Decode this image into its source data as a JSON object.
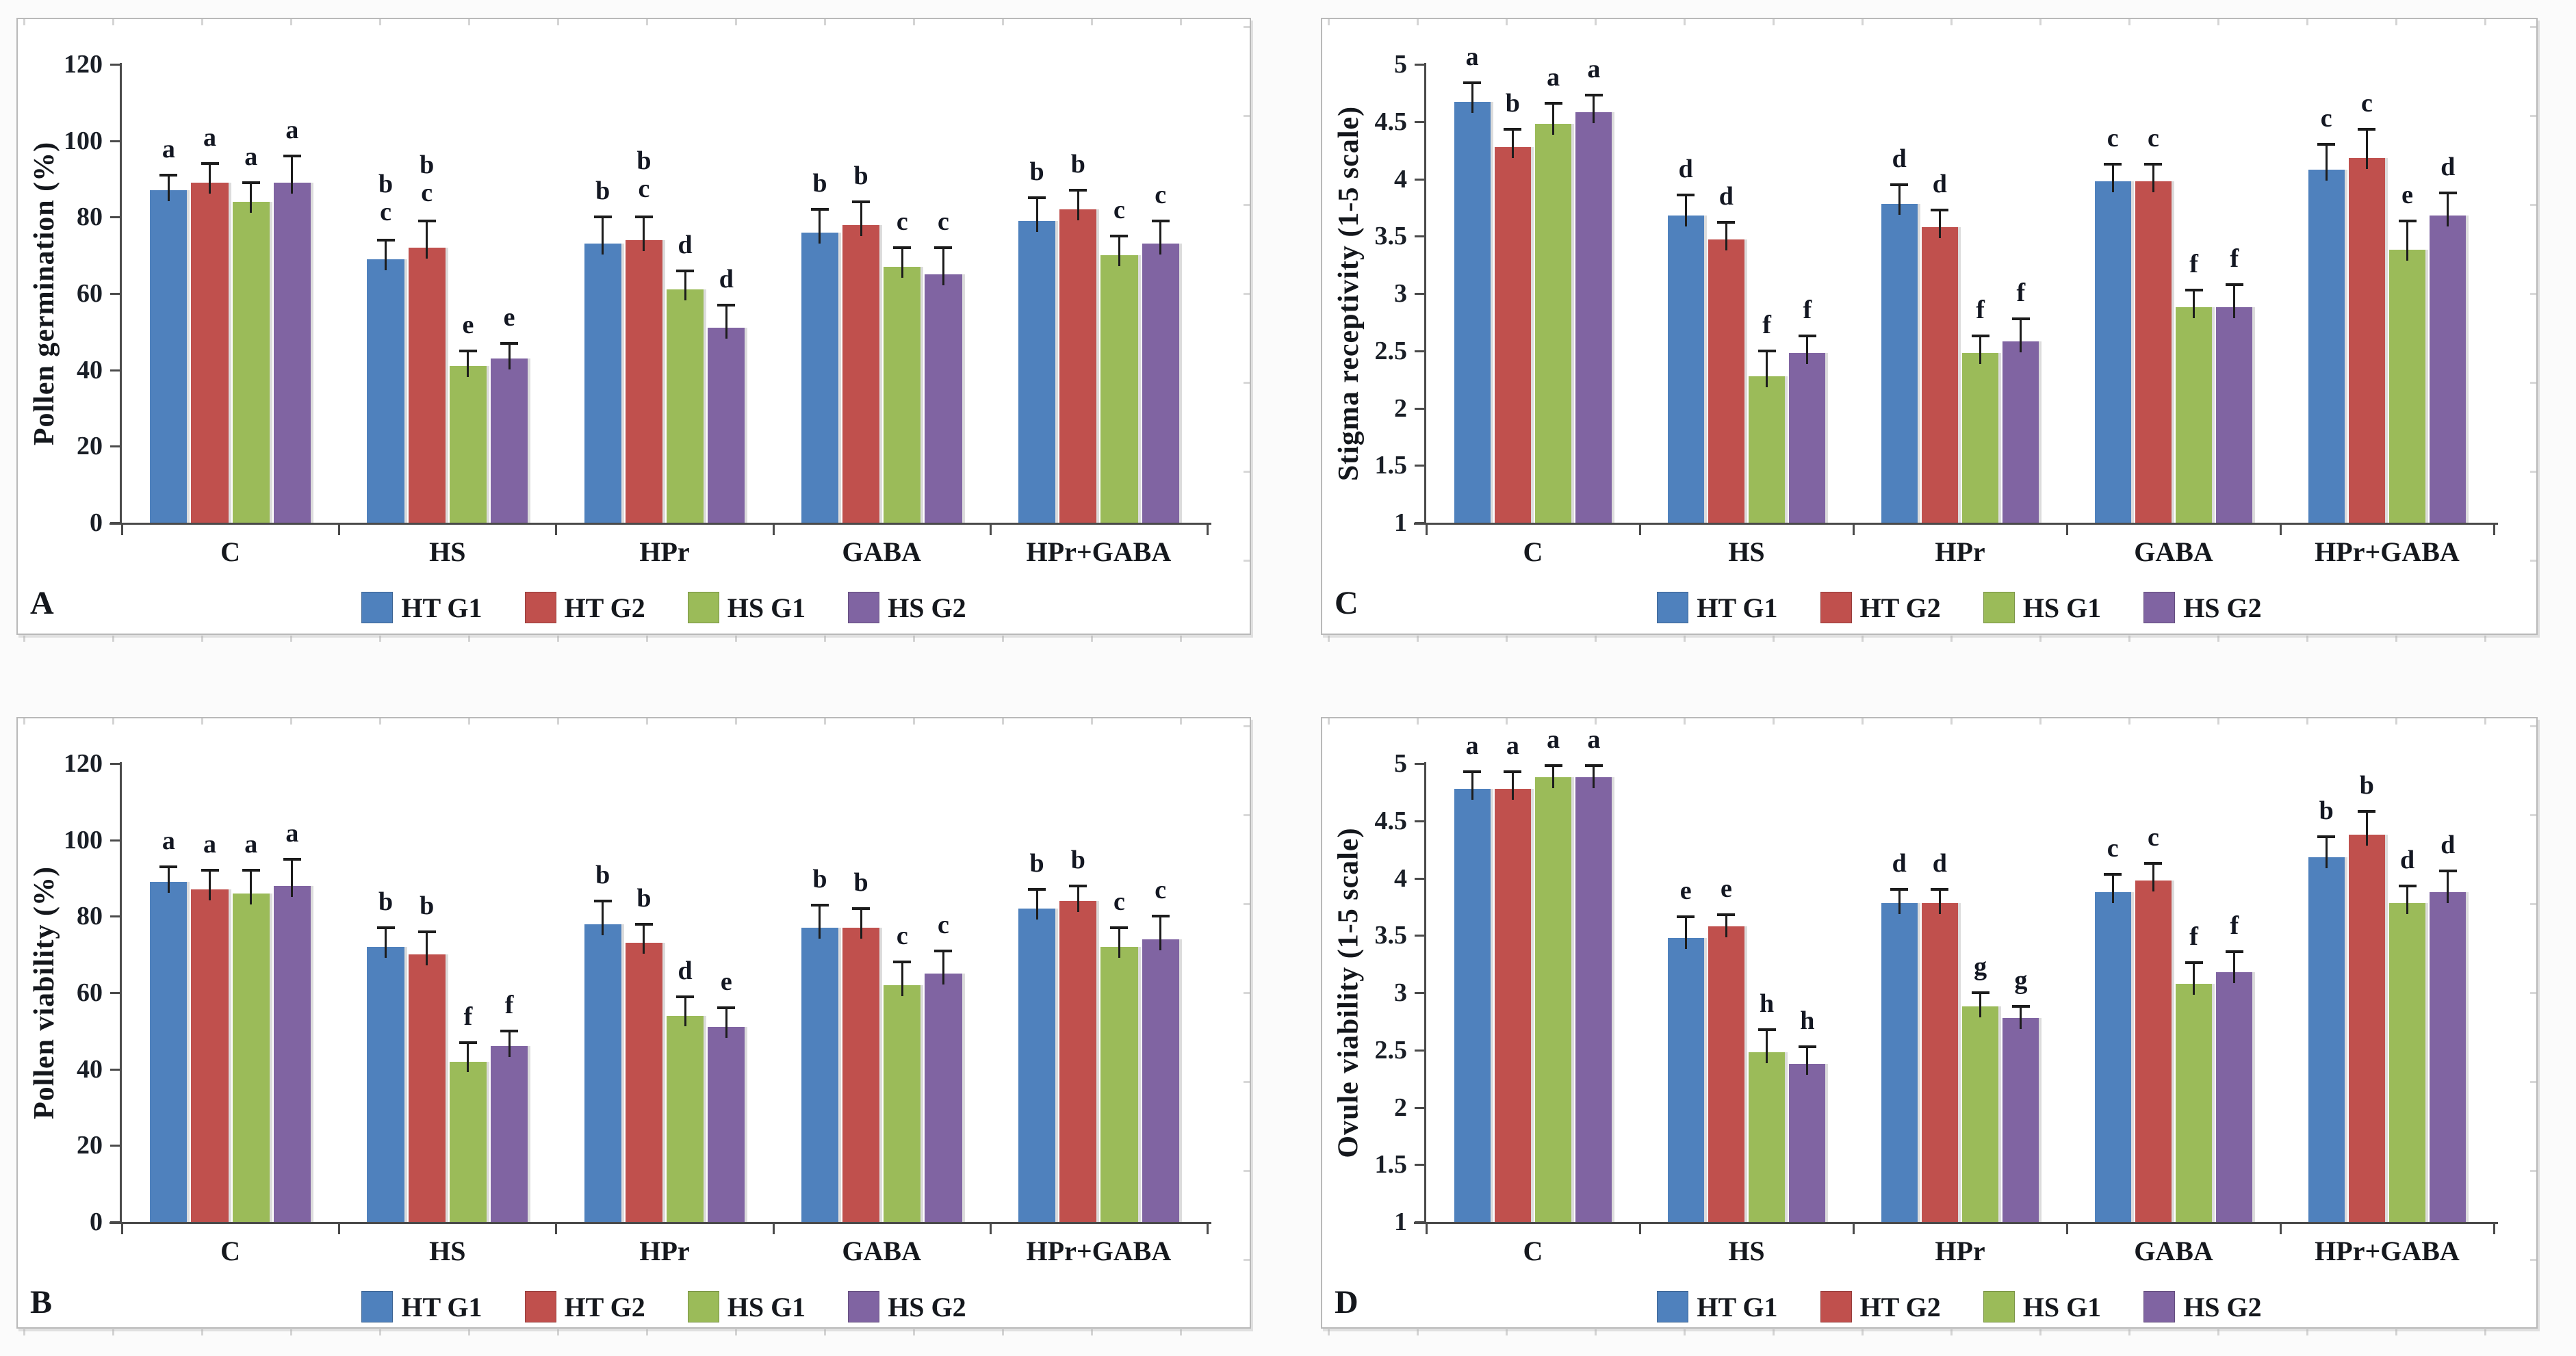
{
  "legend": {
    "items": [
      {
        "label": "HT G1",
        "color": "#4F81BD"
      },
      {
        "label": "HT G2",
        "color": "#C0504D"
      },
      {
        "label": "HS G1",
        "color": "#9BBB59"
      },
      {
        "label": "HS G2",
        "color": "#8064A2"
      }
    ]
  },
  "chart_data": [
    {
      "type": "bar",
      "panel_label": "A",
      "ylabel": "Pollen germination (%)",
      "categories": [
        "C",
        "HS",
        "HPr",
        "GABA",
        "HPr+GABA"
      ],
      "ylim": [
        0,
        120
      ],
      "yticks_values": [
        0,
        20,
        40,
        60,
        80,
        100,
        120
      ],
      "yticks_labels": [
        "0",
        "20",
        "40",
        "60",
        "80",
        "100",
        "120"
      ],
      "grid": false,
      "legend_position": "bottom",
      "series": [
        {
          "name": "HT G1",
          "color": "#4F81BD",
          "values": [
            87,
            69,
            73,
            76,
            79
          ],
          "errors": [
            4,
            5,
            7,
            6,
            6
          ],
          "sig_letters": [
            "a",
            "b\nc",
            "b",
            "b",
            "b"
          ]
        },
        {
          "name": "HT G2",
          "color": "#C0504D",
          "values": [
            89,
            72,
            74,
            78,
            82
          ],
          "errors": [
            5,
            7,
            6,
            6,
            5
          ],
          "sig_letters": [
            "a",
            "b\nc",
            "b\nc",
            "b",
            "b"
          ]
        },
        {
          "name": "HS G1",
          "color": "#9BBB59",
          "values": [
            84,
            41,
            61,
            67,
            70
          ],
          "errors": [
            5,
            4,
            5,
            5,
            5
          ],
          "sig_letters": [
            "a",
            "e",
            "d",
            "c",
            "c"
          ]
        },
        {
          "name": "HS G2",
          "color": "#8064A2",
          "values": [
            89,
            43,
            51,
            65,
            73
          ],
          "errors": [
            7,
            4,
            6,
            7,
            6
          ],
          "sig_letters": [
            "a",
            "e",
            "d",
            "c",
            "c"
          ]
        }
      ]
    },
    {
      "type": "bar",
      "panel_label": "C",
      "ylabel": "Stigma receptivity (1-5 scale)",
      "categories": [
        "C",
        "HS",
        "HPr",
        "GABA",
        "HPr+GABA"
      ],
      "ylim": [
        1,
        5
      ],
      "yticks_values": [
        1,
        1.5,
        2,
        2.5,
        3,
        3.5,
        4,
        4.5,
        5
      ],
      "yticks_labels": [
        "1",
        "1.5",
        "2",
        "2.5",
        "3",
        "3.5",
        "4",
        "4.5",
        "5"
      ],
      "grid": false,
      "legend_position": "bottom",
      "series": [
        {
          "name": "HT G1",
          "color": "#4F81BD",
          "values": [
            4.67,
            3.68,
            3.78,
            3.98,
            4.08
          ],
          "errors": [
            0.17,
            0.18,
            0.17,
            0.15,
            0.22
          ],
          "sig_letters": [
            "a",
            "d",
            "d",
            "c",
            "c"
          ]
        },
        {
          "name": "HT G2",
          "color": "#C0504D",
          "values": [
            4.28,
            3.47,
            3.58,
            3.98,
            4.18
          ],
          "errors": [
            0.15,
            0.15,
            0.15,
            0.15,
            0.25
          ],
          "sig_letters": [
            "b",
            "d",
            "d",
            "c",
            "c"
          ]
        },
        {
          "name": "HS G1",
          "color": "#9BBB59",
          "values": [
            4.48,
            2.28,
            2.48,
            2.88,
            3.38
          ],
          "errors": [
            0.18,
            0.22,
            0.15,
            0.15,
            0.25
          ],
          "sig_letters": [
            "a",
            "f",
            "f",
            "f",
            "e"
          ]
        },
        {
          "name": "HS G2",
          "color": "#8064A2",
          "values": [
            4.58,
            2.48,
            2.58,
            2.88,
            3.68
          ],
          "errors": [
            0.15,
            0.15,
            0.2,
            0.2,
            0.2
          ],
          "sig_letters": [
            "a",
            "f",
            "f",
            "f",
            "d"
          ]
        }
      ]
    },
    {
      "type": "bar",
      "panel_label": "B",
      "ylabel": "Pollen viability (%)",
      "categories": [
        "C",
        "HS",
        "HPr",
        "GABA",
        "HPr+GABA"
      ],
      "ylim": [
        0,
        120
      ],
      "yticks_values": [
        0,
        20,
        40,
        60,
        80,
        100,
        120
      ],
      "yticks_labels": [
        "0",
        "20",
        "40",
        "60",
        "80",
        "100",
        "120"
      ],
      "grid": false,
      "legend_position": "bottom",
      "series": [
        {
          "name": "HT G1",
          "color": "#4F81BD",
          "values": [
            89,
            72,
            78,
            77,
            82
          ],
          "errors": [
            4,
            5,
            6,
            6,
            5
          ],
          "sig_letters": [
            "a",
            "b",
            "b",
            "b",
            "b"
          ]
        },
        {
          "name": "HT G2",
          "color": "#C0504D",
          "values": [
            87,
            70,
            73,
            77,
            84
          ],
          "errors": [
            5,
            6,
            5,
            5,
            4
          ],
          "sig_letters": [
            "a",
            "b",
            "b",
            "b",
            "b"
          ]
        },
        {
          "name": "HS G1",
          "color": "#9BBB59",
          "values": [
            86,
            42,
            54,
            62,
            72
          ],
          "errors": [
            6,
            5,
            5,
            6,
            5
          ],
          "sig_letters": [
            "a",
            "f",
            "d",
            "c",
            "c"
          ]
        },
        {
          "name": "HS G2",
          "color": "#8064A2",
          "values": [
            88,
            46,
            51,
            65,
            74
          ],
          "errors": [
            7,
            4,
            5,
            6,
            6
          ],
          "sig_letters": [
            "a",
            "f",
            "e",
            "c",
            "c"
          ]
        }
      ]
    },
    {
      "type": "bar",
      "panel_label": "D",
      "ylabel": "Ovule viability (1-5 scale)",
      "categories": [
        "C",
        "HS",
        "HPr",
        "GABA",
        "HPr+GABA"
      ],
      "ylim": [
        1,
        5
      ],
      "yticks_values": [
        1,
        1.5,
        2,
        2.5,
        3,
        3.5,
        4,
        4.5,
        5
      ],
      "yticks_labels": [
        "1",
        "1.5",
        "2",
        "2.5",
        "3",
        "3.5",
        "4",
        "4.5",
        "5"
      ],
      "grid": false,
      "legend_position": "bottom",
      "series": [
        {
          "name": "HT G1",
          "color": "#4F81BD",
          "values": [
            4.78,
            3.48,
            3.78,
            3.88,
            4.18
          ],
          "errors": [
            0.15,
            0.18,
            0.12,
            0.15,
            0.18
          ],
          "sig_letters": [
            "a",
            "e",
            "d",
            "c",
            "b"
          ]
        },
        {
          "name": "HT G2",
          "color": "#C0504D",
          "values": [
            4.78,
            3.58,
            3.78,
            3.98,
            4.38
          ],
          "errors": [
            0.15,
            0.1,
            0.12,
            0.15,
            0.2
          ],
          "sig_letters": [
            "a",
            "e",
            "d",
            "c",
            "b"
          ]
        },
        {
          "name": "HS G1",
          "color": "#9BBB59",
          "values": [
            4.88,
            2.48,
            2.88,
            3.08,
            3.78
          ],
          "errors": [
            0.1,
            0.2,
            0.12,
            0.18,
            0.15
          ],
          "sig_letters": [
            "a",
            "h",
            "g",
            "f",
            "d"
          ]
        },
        {
          "name": "HS G2",
          "color": "#8064A2",
          "values": [
            4.88,
            2.38,
            2.78,
            3.18,
            3.88
          ],
          "errors": [
            0.1,
            0.15,
            0.1,
            0.18,
            0.18
          ],
          "sig_letters": [
            "a",
            "h",
            "g",
            "f",
            "d"
          ]
        }
      ]
    }
  ]
}
